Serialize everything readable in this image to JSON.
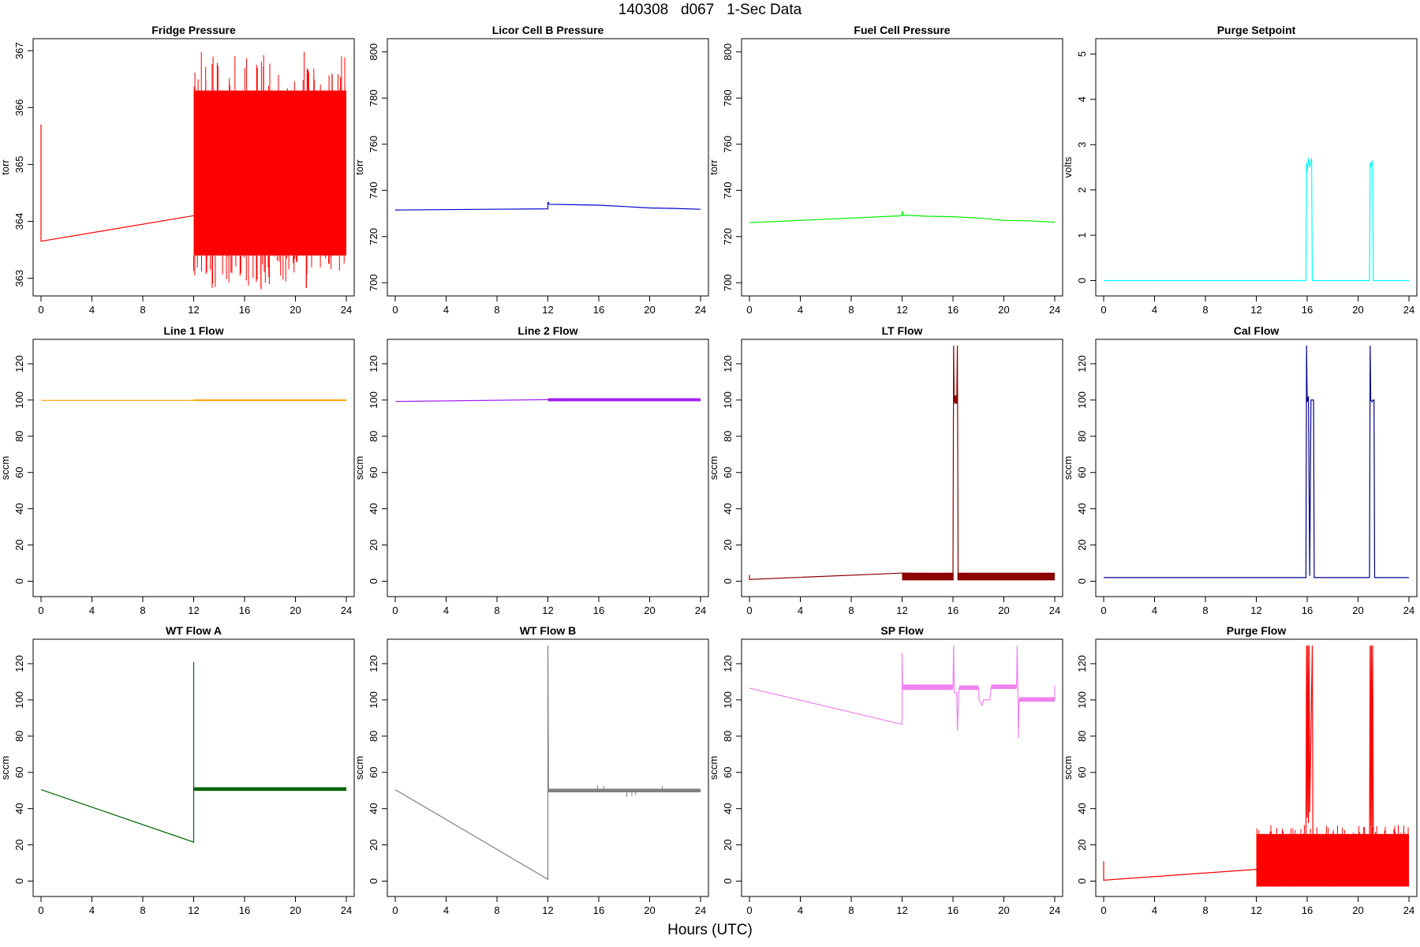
{
  "page": {
    "title": "140308   d067   1-Sec Data",
    "xlabel": "Hours (UTC)"
  },
  "chart_data": [
    {
      "type": "line",
      "title": "Fridge Pressure",
      "ylabel": "torr",
      "color": "#ff0000",
      "xlim": [
        0,
        24
      ],
      "ylim": [
        362.8,
        367.1
      ],
      "xticks": [
        0,
        4,
        8,
        12,
        16,
        20,
        24
      ],
      "yticks": [
        363,
        364,
        365,
        366,
        367
      ],
      "series": [
        {
          "x": [
            0,
            0,
            12
          ],
          "y": [
            365.7,
            363.65,
            364.1
          ]
        }
      ],
      "bands": [
        {
          "x0": 12,
          "x1": 24,
          "y0": 363.4,
          "y1": 366.3,
          "noise_lo": 362.8,
          "noise_hi": 367.0,
          "noise_count": 110
        }
      ]
    },
    {
      "type": "line",
      "title": "Licor Cell B Pressure",
      "ylabel": "torr",
      "color": "#0000cd",
      "xlim": [
        0,
        24
      ],
      "ylim": [
        697,
        803
      ],
      "xticks": [
        0,
        4,
        8,
        12,
        16,
        20,
        24
      ],
      "yticks": [
        700,
        720,
        740,
        760,
        780,
        800
      ],
      "series": [
        {
          "x": [
            0,
            12,
            12,
            12.1,
            14,
            16,
            18,
            20,
            22,
            24
          ],
          "y": [
            731.5,
            732.0,
            735.0,
            734.0,
            733.8,
            733.6,
            733.0,
            732.4,
            732.2,
            731.8
          ]
        }
      ],
      "bands": []
    },
    {
      "type": "line",
      "title": "Fuel Cell Pressure",
      "ylabel": "torr",
      "color": "#00ee00",
      "xlim": [
        0,
        24
      ],
      "ylim": [
        697,
        803
      ],
      "xticks": [
        0,
        4,
        8,
        12,
        16,
        20,
        24
      ],
      "yticks": [
        700,
        720,
        740,
        760,
        780,
        800
      ],
      "series": [
        {
          "x": [
            0,
            12,
            12,
            12.1,
            14,
            16,
            18,
            20,
            22,
            24
          ],
          "y": [
            726.0,
            729.0,
            731.0,
            729.3,
            728.8,
            728.6,
            728.0,
            727.0,
            726.8,
            726.2
          ]
        }
      ],
      "bands": []
    },
    {
      "type": "line",
      "title": "Purge Setpoint",
      "ylabel": "volts",
      "color": "#00ffff",
      "xlim": [
        0,
        24
      ],
      "ylim": [
        -0.2,
        5.2
      ],
      "xticks": [
        0,
        4,
        8,
        12,
        16,
        20,
        24
      ],
      "yticks": [
        0,
        1,
        2,
        3,
        4,
        5
      ],
      "series": [
        {
          "x": [
            0,
            15.9,
            15.95,
            16.0,
            16.1,
            16.2,
            16.35,
            16.4,
            20.9,
            20.95,
            21.0,
            21.1,
            21.15,
            21.2,
            24
          ],
          "y": [
            0,
            0,
            2.6,
            2.4,
            2.7,
            2.5,
            2.7,
            0,
            0,
            2.6,
            2.5,
            2.65,
            2.55,
            0,
            0
          ]
        }
      ],
      "bands": []
    },
    {
      "type": "line",
      "title": "Line 1 Flow",
      "ylabel": "sccm",
      "color": "#ffa500",
      "xlim": [
        0,
        24
      ],
      "ylim": [
        -5,
        130
      ],
      "xticks": [
        0,
        4,
        8,
        12,
        16,
        20,
        24
      ],
      "yticks": [
        0,
        20,
        40,
        60,
        80,
        100,
        120
      ],
      "series": [
        {
          "x": [
            0,
            24
          ],
          "y": [
            99.8,
            99.8
          ]
        }
      ],
      "bands": [
        {
          "x0": 12,
          "x1": 24,
          "y0": 99.5,
          "y1": 100.3
        }
      ]
    },
    {
      "type": "line",
      "title": "Line 2 Flow",
      "ylabel": "sccm",
      "color": "#a020f0",
      "xlim": [
        0,
        24
      ],
      "ylim": [
        -5,
        130
      ],
      "xticks": [
        0,
        4,
        8,
        12,
        16,
        20,
        24
      ],
      "yticks": [
        0,
        20,
        40,
        60,
        80,
        100,
        120
      ],
      "series": [
        {
          "x": [
            0,
            12,
            24
          ],
          "y": [
            99.2,
            100.2,
            100.2
          ]
        }
      ],
      "bands": [
        {
          "x0": 12,
          "x1": 24,
          "y0": 99.3,
          "y1": 101.0
        }
      ]
    },
    {
      "type": "line",
      "title": "LT Flow",
      "ylabel": "sccm",
      "color": "#8b0000",
      "xlim": [
        0,
        24
      ],
      "ylim": [
        -5,
        130
      ],
      "xticks": [
        0,
        4,
        8,
        12,
        16,
        20,
        24
      ],
      "yticks": [
        0,
        20,
        40,
        60,
        80,
        100,
        120
      ],
      "series": [
        {
          "x": [
            0,
            0,
            12,
            16.0,
            16.05,
            16.1,
            16.3,
            16.35,
            16.4,
            24
          ],
          "y": [
            3.5,
            1.0,
            4.5,
            4.0,
            130,
            99,
            102,
            130,
            4.0,
            4.0
          ]
        }
      ],
      "bands": [
        {
          "x0": 12,
          "x1": 16.05,
          "y0": 0.5,
          "y1": 4.7
        },
        {
          "x0": 16.35,
          "x1": 24,
          "y0": 0.5,
          "y1": 4.7
        },
        {
          "x0": 16.1,
          "x1": 16.35,
          "y0": 98,
          "y1": 102.5
        }
      ]
    },
    {
      "type": "line",
      "title": "Cal Flow",
      "ylabel": "sccm",
      "color": "#00008b",
      "xlim": [
        0,
        24
      ],
      "ylim": [
        -5,
        130
      ],
      "xticks": [
        0,
        4,
        8,
        12,
        16,
        20,
        24
      ],
      "yticks": [
        0,
        20,
        40,
        60,
        80,
        100,
        120
      ],
      "series": [
        {
          "x": [
            0,
            15.9,
            15.95,
            16.0,
            16.1,
            16.2,
            16.3,
            16.4,
            16.5,
            16.55,
            20.9,
            20.95,
            21.0,
            21.1,
            21.2,
            21.25,
            21.3,
            24
          ],
          "y": [
            2.0,
            2.0,
            130,
            99,
            102,
            3,
            100,
            100,
            100,
            2.0,
            2.0,
            130,
            100,
            99,
            100,
            100,
            2.0,
            2.0
          ]
        }
      ],
      "bands": []
    },
    {
      "type": "line",
      "title": "WT Flow A",
      "ylabel": "sccm",
      "color": "#006400",
      "xlim": [
        0,
        24
      ],
      "ylim": [
        -5,
        130
      ],
      "xticks": [
        0,
        4,
        8,
        12,
        16,
        20,
        24
      ],
      "yticks": [
        0,
        20,
        40,
        60,
        80,
        100,
        120
      ],
      "series": [
        {
          "x": [
            0,
            12,
            12,
            12,
            24
          ],
          "y": [
            50.5,
            21.5,
            121,
            51,
            51
          ]
        }
      ],
      "bands": [
        {
          "x0": 12,
          "x1": 24,
          "y0": 49.8,
          "y1": 51.8
        }
      ]
    },
    {
      "type": "line",
      "title": "WT Flow B",
      "ylabel": "sccm",
      "color": "#808080",
      "xlim": [
        0,
        24
      ],
      "ylim": [
        -5,
        130
      ],
      "xticks": [
        0,
        4,
        8,
        12,
        16,
        20,
        24
      ],
      "yticks": [
        0,
        20,
        40,
        60,
        80,
        100,
        120
      ],
      "series": [
        {
          "x": [
            0,
            12,
            12,
            12.05,
            24
          ],
          "y": [
            50.5,
            1.0,
            130,
            50,
            50
          ]
        }
      ],
      "bands": [
        {
          "x0": 12,
          "x1": 24,
          "y0": 49.0,
          "y1": 51.0
        }
      ],
      "spikes": [
        {
          "x": 15.9,
          "y0": 50,
          "y1": 53
        },
        {
          "x": 16.4,
          "y0": 50,
          "y1": 52.5
        },
        {
          "x": 18.2,
          "y0": 50,
          "y1": 46.5
        },
        {
          "x": 18.6,
          "y0": 50,
          "y1": 47
        },
        {
          "x": 18.9,
          "y0": 50,
          "y1": 47.5
        },
        {
          "x": 21.0,
          "y0": 50,
          "y1": 52.5
        }
      ]
    },
    {
      "type": "line",
      "title": "SP Flow",
      "ylabel": "sccm",
      "color": "#ee82ee",
      "xlim": [
        0,
        24
      ],
      "ylim": [
        -5,
        130
      ],
      "xticks": [
        0,
        4,
        8,
        12,
        16,
        20,
        24
      ],
      "yticks": [
        0,
        20,
        40,
        60,
        80,
        100,
        120
      ],
      "series": [
        {
          "x": [
            0,
            12,
            12,
            12.05,
            16.0,
            16.05,
            16.1,
            16.3,
            16.35,
            16.45,
            16.5,
            17.2,
            17.3,
            18.0,
            18.05,
            18.3,
            18.4,
            18.9,
            19.0,
            21.0,
            21.05,
            21.1,
            21.15,
            21.2,
            22,
            24,
            24
          ],
          "y": [
            106.5,
            86.5,
            126,
            107,
            107,
            130,
            104,
            104,
            83,
            104,
            107,
            107,
            107,
            107,
            100,
            97,
            100,
            100,
            107,
            107,
            130,
            107,
            79,
            100,
            100,
            100,
            108
          ]
        }
      ],
      "bands": [
        {
          "x0": 12.05,
          "x1": 16.0,
          "y0": 105.5,
          "y1": 108.5
        },
        {
          "x0": 16.5,
          "x1": 18.0,
          "y0": 105.5,
          "y1": 108
        },
        {
          "x0": 19.0,
          "x1": 21.0,
          "y0": 106,
          "y1": 108.5
        },
        {
          "x0": 21.2,
          "x1": 24,
          "y0": 99,
          "y1": 101.5
        }
      ]
    },
    {
      "type": "line",
      "title": "Purge Flow",
      "ylabel": "sccm",
      "color": "#ff0000",
      "xlim": [
        0,
        24
      ],
      "ylim": [
        -5,
        130
      ],
      "xticks": [
        0,
        4,
        8,
        12,
        16,
        20,
        24
      ],
      "yticks": [
        0,
        20,
        40,
        60,
        80,
        100,
        120
      ],
      "series": [
        {
          "x": [
            0,
            0,
            12,
            15.9,
            15.95,
            16.0,
            16.05,
            16.1,
            16.15,
            16.2,
            16.4,
            16.45,
            20.9,
            20.95,
            21.0,
            21.05,
            21.1,
            21.15,
            21.2,
            24
          ],
          "y": [
            11,
            0.5,
            6.5,
            20,
            130,
            35,
            130,
            32,
            130,
            38,
            130,
            20,
            20,
            130,
            30,
            130,
            29,
            130,
            20,
            20
          ]
        }
      ],
      "bands": [
        {
          "x0": 12,
          "x1": 24,
          "y0": -3,
          "y1": 26,
          "noise_lo": 20,
          "noise_hi": 31,
          "noise_count": 120
        }
      ]
    }
  ]
}
